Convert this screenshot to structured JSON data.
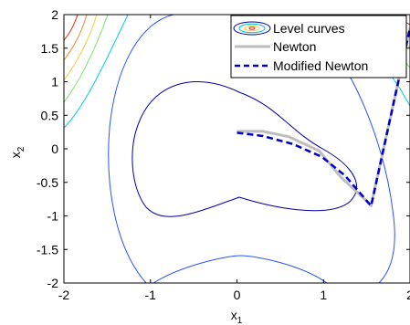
{
  "chart_data": {
    "type": "line",
    "title": "",
    "xlabel": {
      "base": "x",
      "sub": "1"
    },
    "ylabel": {
      "base": "x",
      "sub": "2"
    },
    "xlim": [
      -2,
      2
    ],
    "ylim": [
      -2,
      2
    ],
    "xticks": [
      -2,
      -1,
      0,
      1,
      2
    ],
    "yticks": [
      -2,
      -1.5,
      -1,
      -0.5,
      0,
      0.5,
      1,
      1.5,
      2
    ],
    "xtick_labels": [
      "-2",
      "-1",
      "0",
      "1",
      "2"
    ],
    "ytick_labels": [
      "-2",
      "-1.5",
      "-1",
      "-0.5",
      "0",
      "0.5",
      "1",
      "1.5",
      "2"
    ],
    "grid": false,
    "legend_position": "top-right",
    "legend": [
      {
        "label": "Level curves",
        "style": "contour"
      },
      {
        "label": "Newton",
        "style": "solid",
        "color": "#bdbdbd"
      },
      {
        "label": "Modified Newton",
        "style": "dashed",
        "color": "#0000cc"
      }
    ],
    "series": [
      {
        "name": "Newton",
        "color": "#bdbdbd",
        "dash": false,
        "x": [
          0,
          0.3,
          0.6,
          0.95,
          1.2,
          1.45,
          1.55,
          2.0
        ],
        "y": [
          0.26,
          0.26,
          0.18,
          -0.03,
          -0.42,
          -0.72,
          -0.85,
          1.8
        ]
      },
      {
        "name": "Modified Newton",
        "color": "#0000cc",
        "dash": true,
        "x": [
          0,
          0.3,
          0.65,
          0.98,
          1.25,
          1.45,
          1.55,
          2.0
        ],
        "y": [
          0.24,
          0.19,
          0.07,
          -0.12,
          -0.4,
          -0.7,
          -0.85,
          1.8
        ]
      }
    ],
    "contour_colors": {
      "inner_blue": "#0000aa",
      "blue": "#2a52ff",
      "cyan": "#00d0d8",
      "green": "#7be36b",
      "yellow": "#e8d23a",
      "orange": "#f08a2a",
      "red": "#e02a1a"
    }
  }
}
